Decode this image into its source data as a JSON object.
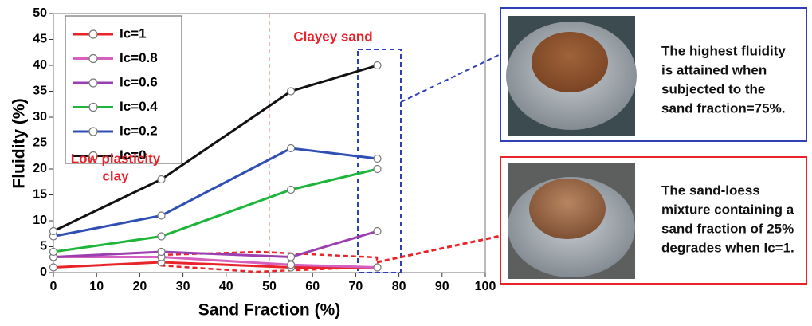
{
  "chart_data": {
    "type": "line",
    "x_label": "Sand Fraction (%)",
    "y_label": "Fluidity (%)",
    "x": [
      0,
      25,
      55,
      75
    ],
    "series": [
      {
        "name": "Ic=1",
        "color": "#e8232a",
        "values": [
          1,
          2,
          1,
          1
        ]
      },
      {
        "name": "Ic=0.8",
        "color": "#d660c0",
        "values": [
          3,
          3,
          1.5,
          1
        ]
      },
      {
        "name": "Ic=0.6",
        "color": "#9b3fb0",
        "values": [
          3,
          4,
          3,
          8
        ]
      },
      {
        "name": "Ic=0.4",
        "color": "#1db53a",
        "values": [
          4,
          7,
          16,
          20
        ]
      },
      {
        "name": "Ic=0.2",
        "color": "#2f4fb5",
        "values": [
          7,
          11,
          24,
          22
        ]
      },
      {
        "name": "Ic=0",
        "color": "#111111",
        "values": [
          8,
          18,
          35,
          40
        ]
      }
    ],
    "xlim": [
      0,
      100
    ],
    "xticks": [
      0,
      10,
      20,
      30,
      40,
      50,
      60,
      70,
      80,
      90,
      100
    ],
    "ylim": [
      0,
      50
    ],
    "yticks": [
      0,
      5,
      10,
      15,
      20,
      25,
      30,
      35,
      40,
      45,
      50
    ],
    "annotations": {
      "low_plasticity": [
        "Low plasticity",
        "clay"
      ],
      "clayey_sand": "Clayey sand"
    },
    "legend": "upper left"
  },
  "callouts": [
    {
      "lines": [
        "The highest fluidity",
        "is attained when",
        "subjected to the",
        "sand fraction=75%."
      ]
    },
    {
      "lines": [
        "The sand-loess",
        "mixture containing a",
        "sand fraction of 25%",
        "degrades when Ic=1."
      ]
    }
  ]
}
